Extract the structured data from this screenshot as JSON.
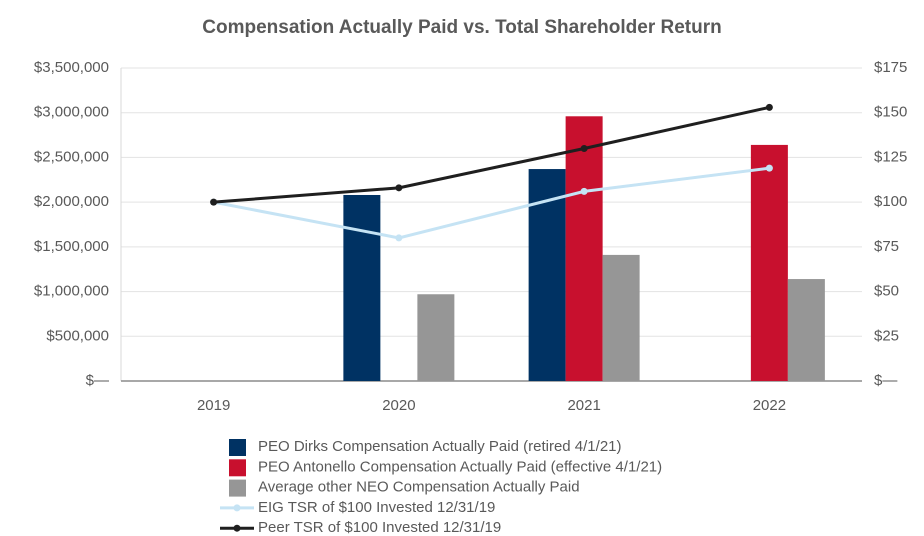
{
  "chart_data": {
    "type": "bar",
    "title": "Compensation Actually Paid vs. Total Shareholder Return",
    "categories": [
      "2019",
      "2020",
      "2021",
      "2022"
    ],
    "series": [
      {
        "name": "PEO Dirks Compensation Actually Paid (retired 4/1/21)",
        "type": "bar",
        "color": "#003263",
        "values": [
          null,
          2080000,
          2370000,
          null
        ]
      },
      {
        "name": "PEO Antonello Compensation Actually Paid (effective 4/1/21)",
        "type": "bar",
        "color": "#c8102e",
        "values": [
          null,
          null,
          2960000,
          2640000
        ]
      },
      {
        "name": "Average other NEO Compensation Actually Paid",
        "type": "bar",
        "color": "#969696",
        "values": [
          null,
          970000,
          1410000,
          1140000
        ]
      },
      {
        "name": "EIG TSR of $100 Invested 12/31/19",
        "type": "line",
        "axis": "y2",
        "color": "#c5e3f4",
        "values": [
          100,
          80,
          106,
          119
        ]
      },
      {
        "name": "Peer TSR of $100 Invested 12/31/19",
        "type": "line",
        "axis": "y2",
        "color": "#1f1f1f",
        "values": [
          100,
          108,
          130,
          153
        ]
      }
    ],
    "ylim": [
      0,
      3500000
    ],
    "yticks": [
      {
        "value": 0,
        "label": "$—"
      },
      {
        "value": 500000,
        "label": "$500,000"
      },
      {
        "value": 1000000,
        "label": "$1,000,000"
      },
      {
        "value": 1500000,
        "label": "$1,500,000"
      },
      {
        "value": 2000000,
        "label": "$2,000,000"
      },
      {
        "value": 2500000,
        "label": "$2,500,000"
      },
      {
        "value": 3000000,
        "label": "$3,000,000"
      },
      {
        "value": 3500000,
        "label": "$3,500,000"
      }
    ],
    "y2lim": [
      0,
      175
    ],
    "y2ticks": [
      {
        "value": 0,
        "label": "$—"
      },
      {
        "value": 25,
        "label": "$25"
      },
      {
        "value": 50,
        "label": "$50"
      },
      {
        "value": 75,
        "label": "$75"
      },
      {
        "value": 100,
        "label": "$100"
      },
      {
        "value": 125,
        "label": "$125"
      },
      {
        "value": 150,
        "label": "$150"
      },
      {
        "value": 175,
        "label": "$175"
      }
    ],
    "grid": true
  }
}
